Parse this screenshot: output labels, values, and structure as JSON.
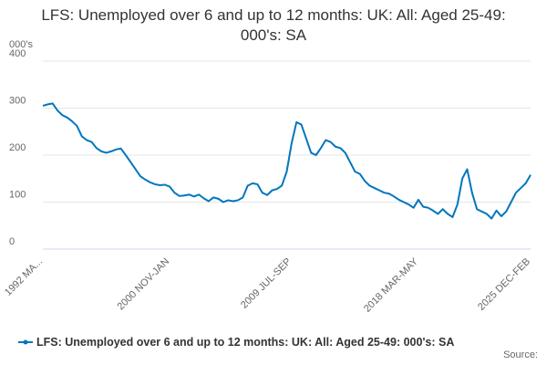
{
  "chart_data": {
    "type": "line",
    "title": "LFS: Unemployed over 6 and up to 12 months: UK: All: Aged 25-49: 000's: SA",
    "y_label": "000's",
    "source": "Source:",
    "categories": [
      "1992 MA...",
      null,
      null,
      null,
      null,
      null,
      null,
      null,
      null,
      null,
      null,
      null,
      null,
      null,
      null,
      null,
      null,
      null,
      null,
      null,
      null,
      null,
      null,
      null,
      null,
      null,
      "2000 NOV-JAN",
      null,
      null,
      null,
      null,
      null,
      null,
      null,
      null,
      null,
      null,
      null,
      null,
      null,
      null,
      null,
      null,
      null,
      null,
      null,
      null,
      null,
      null,
      null,
      null,
      "2009 JUL-SEP",
      null,
      null,
      null,
      null,
      null,
      null,
      null,
      null,
      null,
      null,
      null,
      null,
      null,
      null,
      null,
      null,
      null,
      null,
      null,
      null,
      null,
      null,
      null,
      null,
      null,
      "2018 MAR-MAY",
      null,
      null,
      null,
      null,
      null,
      null,
      null,
      null,
      null,
      null,
      null,
      null,
      null,
      null,
      null,
      null,
      null,
      null,
      null,
      null,
      null,
      null,
      "2025 DEC-FEB"
    ],
    "series": [
      {
        "name": "LFS: Unemployed over 6 and up to 12 months: UK: All: Aged 25-49: 000's: SA",
        "color": "#0076bd",
        "values": [
          305,
          308,
          310,
          295,
          285,
          280,
          272,
          262,
          240,
          232,
          228,
          215,
          208,
          205,
          208,
          212,
          214,
          200,
          185,
          170,
          155,
          148,
          142,
          138,
          136,
          137,
          133,
          120,
          113,
          114,
          116,
          112,
          116,
          108,
          102,
          110,
          107,
          100,
          104,
          102,
          104,
          110,
          135,
          140,
          138,
          120,
          115,
          125,
          128,
          135,
          165,
          225,
          270,
          265,
          235,
          205,
          200,
          215,
          232,
          228,
          218,
          215,
          205,
          185,
          165,
          160,
          145,
          135,
          130,
          125,
          120,
          118,
          112,
          105,
          100,
          95,
          88,
          105,
          90,
          88,
          82,
          75,
          85,
          75,
          68,
          95,
          150,
          170,
          120,
          85,
          80,
          75,
          65,
          82,
          70,
          80,
          100,
          120,
          130,
          140,
          158
        ]
      }
    ],
    "ylim": [
      0,
      400
    ],
    "yticks": [
      0,
      100,
      200,
      300,
      400
    ],
    "grid": true
  }
}
